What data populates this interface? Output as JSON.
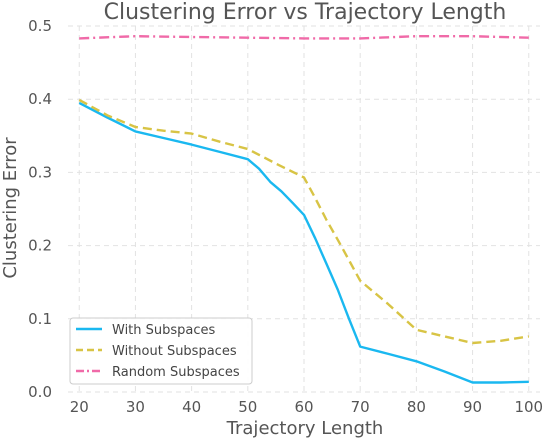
{
  "chart_data": {
    "type": "line",
    "title": "Clustering Error vs Trajectory Length",
    "xlabel": "Trajectory Length",
    "ylabel": "Clustering Error",
    "xlim": [
      18,
      102
    ],
    "ylim": [
      0,
      0.5
    ],
    "xticks": [
      20,
      30,
      40,
      50,
      60,
      70,
      80,
      90,
      100
    ],
    "yticks": [
      0.0,
      0.1,
      0.2,
      0.3,
      0.4,
      0.5
    ],
    "ytick_labels": [
      "0.0",
      "0.1",
      "0.2",
      "0.3",
      "0.4",
      "0.5"
    ],
    "grid": true,
    "legend_position": "bottom-left",
    "series": [
      {
        "name": "With Subspaces",
        "color": "#1ab8f0",
        "dash": "solid",
        "x": [
          20,
          25,
          30,
          35,
          40,
          45,
          50,
          52,
          54,
          56,
          58,
          60,
          62,
          64,
          66,
          68,
          70,
          75,
          80,
          85,
          90,
          95,
          100
        ],
        "y": [
          0.395,
          0.375,
          0.356,
          0.347,
          0.338,
          0.328,
          0.318,
          0.305,
          0.287,
          0.274,
          0.258,
          0.242,
          0.21,
          0.175,
          0.14,
          0.1,
          0.062,
          0.052,
          0.042,
          0.028,
          0.013,
          0.013,
          0.014
        ]
      },
      {
        "name": "Without Subspaces",
        "color": "#d8c445",
        "dash": "dashed",
        "x": [
          20,
          25,
          30,
          35,
          40,
          45,
          50,
          55,
          60,
          62,
          64,
          66,
          68,
          70,
          75,
          80,
          85,
          90,
          95,
          100
        ],
        "y": [
          0.399,
          0.378,
          0.362,
          0.357,
          0.353,
          0.342,
          0.332,
          0.312,
          0.293,
          0.265,
          0.235,
          0.208,
          0.18,
          0.152,
          0.12,
          0.085,
          0.076,
          0.067,
          0.07,
          0.076
        ]
      },
      {
        "name": "Random Subspaces",
        "color": "#f06aa8",
        "dash": "dashdot",
        "x": [
          20,
          30,
          40,
          50,
          60,
          70,
          80,
          90,
          100
        ],
        "y": [
          0.483,
          0.486,
          0.485,
          0.484,
          0.483,
          0.483,
          0.486,
          0.486,
          0.484
        ]
      }
    ]
  }
}
